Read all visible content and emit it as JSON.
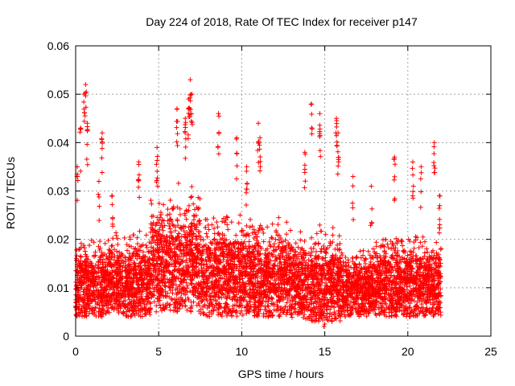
{
  "chart_data": {
    "type": "scatter",
    "title": "Day 224 of 2018, Rate Of TEC Index for receiver p147",
    "xlabel": "GPS time / hours",
    "ylabel": "ROTI / TECUs",
    "xlim": [
      0,
      25
    ],
    "ylim": [
      0,
      0.06
    ],
    "x_ticks": [
      "0",
      "5",
      "10",
      "15",
      "20",
      "25"
    ],
    "y_ticks": [
      "0",
      "0.01",
      "0.02",
      "0.03",
      "0.04",
      "0.05",
      "0.06"
    ],
    "grid": true,
    "marker": "+",
    "series_color": "#ff0000",
    "data_range_x": [
      0,
      22
    ],
    "bands": [
      {
        "x0": 0.0,
        "x1": 2.0,
        "lo": 0.004,
        "hi": 0.022
      },
      {
        "x0": 2.0,
        "x1": 4.5,
        "lo": 0.004,
        "hi": 0.023
      },
      {
        "x0": 4.5,
        "x1": 7.5,
        "lo": 0.005,
        "hi": 0.033
      },
      {
        "x0": 7.5,
        "x1": 10.0,
        "lo": 0.004,
        "hi": 0.028
      },
      {
        "x0": 10.0,
        "x1": 13.0,
        "lo": 0.004,
        "hi": 0.026
      },
      {
        "x0": 13.0,
        "x1": 16.0,
        "lo": 0.003,
        "hi": 0.024
      },
      {
        "x0": 16.0,
        "x1": 18.0,
        "lo": 0.004,
        "hi": 0.02
      },
      {
        "x0": 18.0,
        "x1": 22.0,
        "lo": 0.004,
        "hi": 0.023
      }
    ],
    "peaks": [
      {
        "x": 0.1,
        "y": 0.035
      },
      {
        "x": 0.3,
        "y": 0.043
      },
      {
        "x": 0.5,
        "y": 0.05
      },
      {
        "x": 0.6,
        "y": 0.052
      },
      {
        "x": 0.7,
        "y": 0.044
      },
      {
        "x": 1.6,
        "y": 0.042
      },
      {
        "x": 1.4,
        "y": 0.032
      },
      {
        "x": 2.2,
        "y": 0.029
      },
      {
        "x": 3.8,
        "y": 0.036
      },
      {
        "x": 4.9,
        "y": 0.039
      },
      {
        "x": 6.1,
        "y": 0.047
      },
      {
        "x": 6.6,
        "y": 0.045
      },
      {
        "x": 6.8,
        "y": 0.049
      },
      {
        "x": 6.9,
        "y": 0.053
      },
      {
        "x": 7.0,
        "y": 0.05
      },
      {
        "x": 8.6,
        "y": 0.046
      },
      {
        "x": 9.7,
        "y": 0.041
      },
      {
        "x": 10.3,
        "y": 0.035
      },
      {
        "x": 11.0,
        "y": 0.044
      },
      {
        "x": 11.1,
        "y": 0.041
      },
      {
        "x": 13.8,
        "y": 0.038
      },
      {
        "x": 14.2,
        "y": 0.048
      },
      {
        "x": 14.7,
        "y": 0.046
      },
      {
        "x": 15.7,
        "y": 0.045
      },
      {
        "x": 15.8,
        "y": 0.042
      },
      {
        "x": 16.7,
        "y": 0.033
      },
      {
        "x": 17.8,
        "y": 0.031
      },
      {
        "x": 19.2,
        "y": 0.037
      },
      {
        "x": 20.3,
        "y": 0.036
      },
      {
        "x": 20.8,
        "y": 0.035
      },
      {
        "x": 21.6,
        "y": 0.04
      },
      {
        "x": 21.9,
        "y": 0.029
      }
    ],
    "min_points": [
      {
        "x": 14.95,
        "y": 0.002
      },
      {
        "x": 15.0,
        "y": 0.0025
      }
    ]
  }
}
